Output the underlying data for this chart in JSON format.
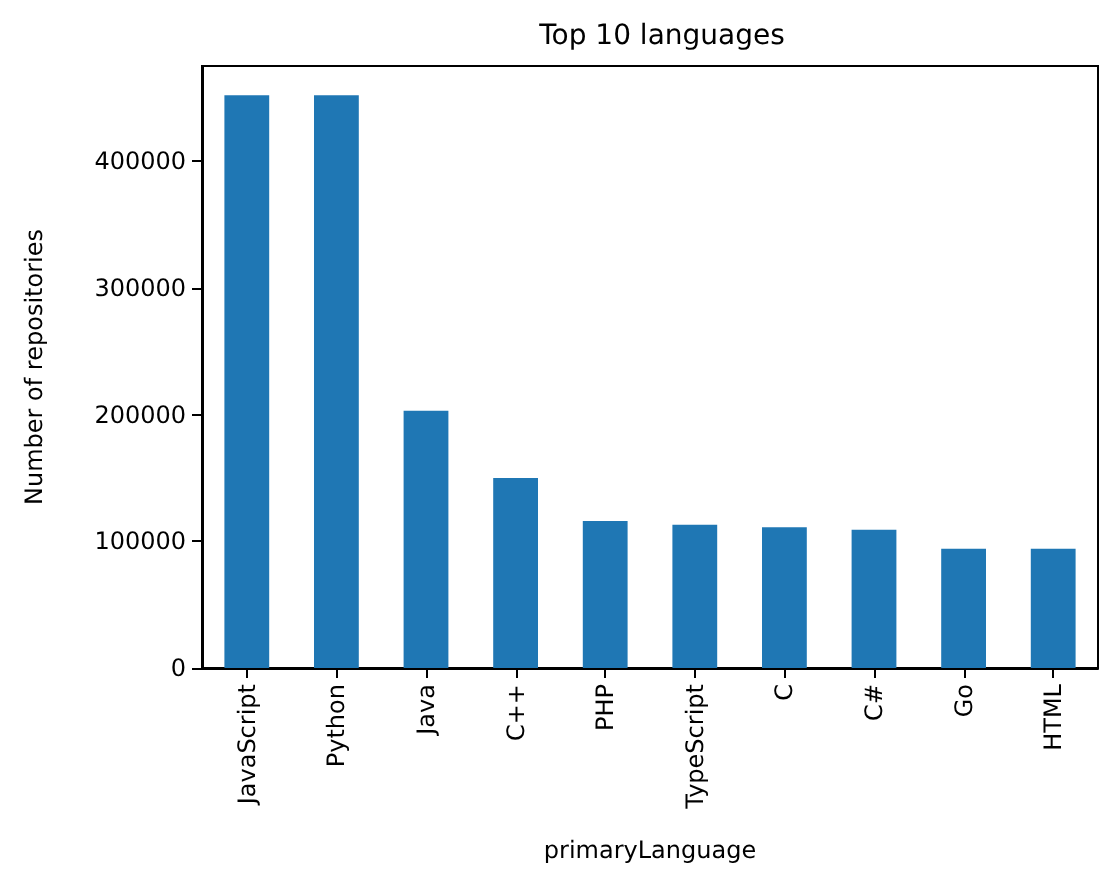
{
  "chart_data": {
    "type": "bar",
    "title": "Top 10 languages",
    "xlabel": "primaryLanguage",
    "ylabel": "Number of repositories",
    "categories": [
      "JavaScript",
      "Python",
      "Java",
      "C++",
      "PHP",
      "TypeScript",
      "C",
      "C#",
      "Go",
      "HTML"
    ],
    "values": [
      452000,
      452000,
      203000,
      150000,
      116000,
      113000,
      111000,
      109000,
      94000,
      94000
    ],
    "color": "#1f77b4",
    "ylim": [
      0,
      475000
    ],
    "yticks": [
      0,
      100000,
      200000,
      300000,
      400000
    ],
    "grid": false
  }
}
